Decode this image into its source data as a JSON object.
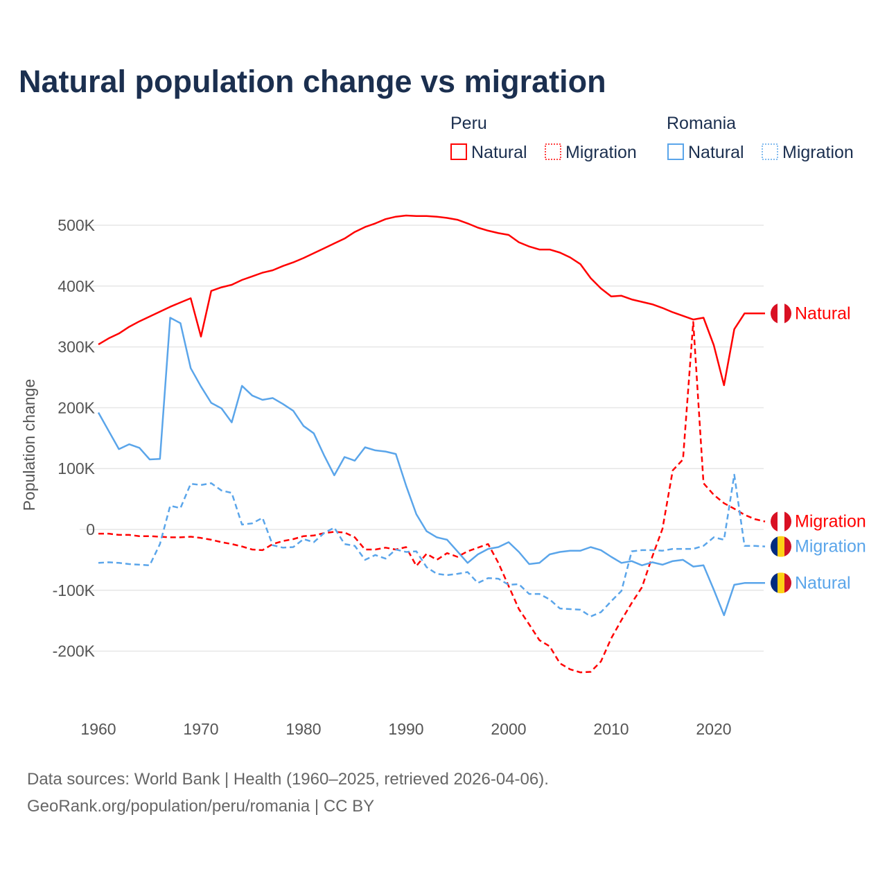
{
  "chart_data": {
    "type": "line",
    "title": "Natural population change vs migration",
    "xlabel": "",
    "ylabel": "Population change",
    "xlim": [
      1960,
      2025
    ],
    "ylim": [
      -250000,
      550000
    ],
    "x_ticks": [
      1960,
      1970,
      1980,
      1990,
      2000,
      2010,
      2020
    ],
    "x_tick_labels": [
      "1960",
      "1970",
      "1980",
      "1990",
      "2000",
      "2010",
      "2020"
    ],
    "y_ticks": [
      500000,
      400000,
      300000,
      200000,
      100000,
      0,
      -100000,
      -200000
    ],
    "y_tick_labels": [
      "500K",
      "400K",
      "300K",
      "200K",
      "100K",
      "0",
      "-100K",
      "-200K"
    ],
    "grid": true,
    "legend": {
      "placement": "top-right",
      "groups": [
        {
          "country": "Peru",
          "entries": [
            "Natural",
            "Migration"
          ]
        },
        {
          "country": "Romania",
          "entries": [
            "Natural",
            "Migration"
          ]
        }
      ]
    },
    "years_start": 1960,
    "series": [
      {
        "name": "Natural",
        "country": "Peru",
        "color": "#ff0000",
        "dash": "solid",
        "end_label": "Natural",
        "flag": "peru",
        "values_k": [
          304,
          314,
          322,
          333,
          342,
          350,
          358,
          366,
          373,
          380,
          317,
          392,
          398,
          402,
          410,
          416,
          422,
          426,
          433,
          439,
          446,
          454,
          462,
          470,
          478,
          489,
          497,
          503,
          510,
          514,
          516,
          515,
          515,
          514,
          512,
          509,
          503,
          496,
          491,
          487,
          484,
          472,
          465,
          460,
          460,
          455,
          447,
          436,
          413,
          396,
          383,
          384,
          378,
          374,
          370,
          364,
          357,
          351,
          345,
          348,
          303,
          237,
          329,
          355,
          355,
          355
        ]
      },
      {
        "name": "Migration",
        "country": "Peru",
        "color": "#ff0000",
        "dash": "dashed",
        "end_label": "Migration",
        "flag": "peru",
        "values_k": [
          -7,
          -7,
          -9,
          -9,
          -11,
          -11,
          -12,
          -13,
          -13,
          -12,
          -14,
          -17,
          -21,
          -24,
          -28,
          -33,
          -34,
          -24,
          -19,
          -16,
          -11,
          -10,
          -6,
          -4,
          -5,
          -13,
          -33,
          -33,
          -30,
          -33,
          -29,
          -60,
          -40,
          -50,
          -39,
          -45,
          -36,
          -30,
          -24,
          -55,
          -93,
          -131,
          -156,
          -182,
          -192,
          -220,
          -230,
          -235,
          -234,
          -217,
          -179,
          -149,
          -121,
          -95,
          -45,
          1,
          97,
          115,
          341,
          76,
          57,
          43,
          34,
          24,
          17,
          13
        ]
      },
      {
        "name": "Migration",
        "country": "Romania",
        "color": "#5aa5ea",
        "dash": "dashed",
        "end_label": "Migration",
        "flag": "romania",
        "values_k": [
          -55,
          -54,
          -55,
          -57,
          -58,
          -59,
          -24,
          39,
          35,
          75,
          73,
          76,
          64,
          60,
          8,
          10,
          19,
          -26,
          -30,
          -29,
          -16,
          -21,
          -6,
          3,
          -24,
          -27,
          -50,
          -42,
          -48,
          -33,
          -37,
          -36,
          -62,
          -73,
          -75,
          -73,
          -70,
          -88,
          -80,
          -81,
          -91,
          -90,
          -106,
          -106,
          -115,
          -130,
          -131,
          -132,
          -143,
          -136,
          -118,
          -101,
          -36,
          -34,
          -34,
          -35,
          -32,
          -32,
          -32,
          -27,
          -13,
          -17,
          90,
          -27,
          -27,
          -28
        ]
      },
      {
        "name": "Natural",
        "country": "Romania",
        "color": "#5aa5ea",
        "dash": "solid",
        "end_label": "Natural",
        "flag": "romania",
        "values_k": [
          192,
          162,
          132,
          140,
          134,
          115,
          116,
          348,
          339,
          265,
          235,
          208,
          199,
          176,
          236,
          220,
          213,
          216,
          206,
          195,
          170,
          158,
          122,
          89,
          119,
          113,
          135,
          130,
          128,
          124,
          72,
          25,
          -3,
          -13,
          -17,
          -36,
          -55,
          -41,
          -32,
          -29,
          -21,
          -37,
          -57,
          -55,
          -41,
          -37,
          -35,
          -35,
          -29,
          -34,
          -45,
          -55,
          -52,
          -59,
          -54,
          -58,
          -52,
          -50,
          -61,
          -59,
          -99,
          -141,
          -91,
          -88,
          -88,
          -88
        ]
      }
    ],
    "colors": {
      "peru": "#ff0000",
      "romania": "#5aa5ea",
      "title": "#1b2f4f"
    }
  },
  "footer": {
    "source_line": "Data sources: World Bank | Health (1960–2025, retrieved 2026-04-06).",
    "credit_line": "GeoRank.org/population/peru/romania | CC BY"
  }
}
